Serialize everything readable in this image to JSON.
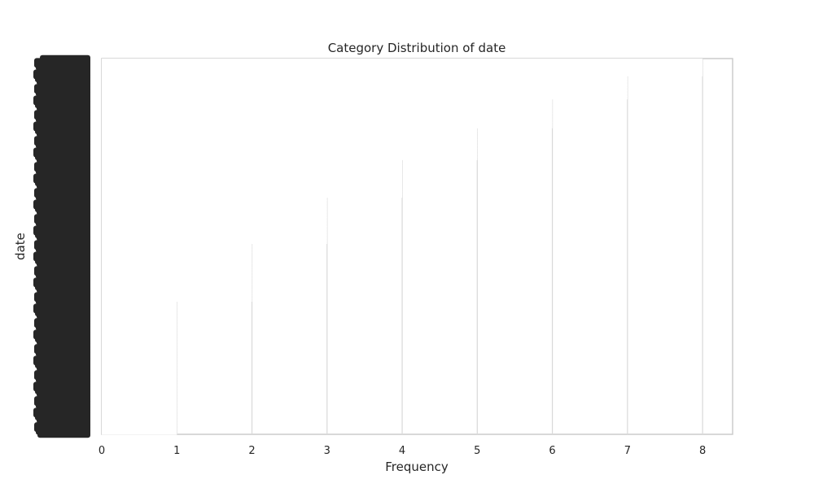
{
  "chart_data": {
    "type": "bar",
    "orientation": "horizontal",
    "title": "Category Distribution of date",
    "xlabel": "Frequency",
    "ylabel": "date",
    "xlim": [
      0,
      8.4
    ],
    "x_ticks": [
      "0",
      "1",
      "2",
      "3",
      "4",
      "5",
      "6",
      "7",
      "8"
    ],
    "grid": true,
    "legend": "none",
    "category_count": 130,
    "category_tick_labels_legible": false,
    "tick_color": "#262626",
    "background": "#ffffff",
    "values": [
      8,
      8,
      8,
      8,
      8,
      8,
      7,
      7,
      7,
      7,
      7,
      7,
      7,
      7,
      6,
      6,
      6,
      6,
      6,
      6,
      6,
      6,
      6,
      6,
      5,
      5,
      5,
      5,
      5,
      5,
      5,
      5,
      5,
      5,
      5,
      4,
      4,
      4,
      4,
      4,
      4,
      4,
      4,
      4,
      4,
      4,
      4,
      4,
      3,
      3,
      3,
      3,
      3,
      3,
      3,
      3,
      3,
      3,
      3,
      3,
      3,
      3,
      3,
      3,
      2,
      2,
      2,
      2,
      2,
      2,
      2,
      2,
      2,
      2,
      2,
      2,
      2,
      2,
      2,
      2,
      2,
      2,
      2,
      2,
      1,
      1,
      1,
      1,
      1,
      1,
      1,
      1,
      1,
      1,
      1,
      1,
      1,
      1,
      1,
      1,
      1,
      1,
      1,
      1,
      1,
      1,
      1,
      1,
      1,
      1,
      1,
      1,
      1,
      1,
      1,
      1,
      1,
      1,
      1,
      1,
      1,
      1,
      1,
      1,
      1,
      1,
      1,
      1,
      1,
      1
    ]
  }
}
